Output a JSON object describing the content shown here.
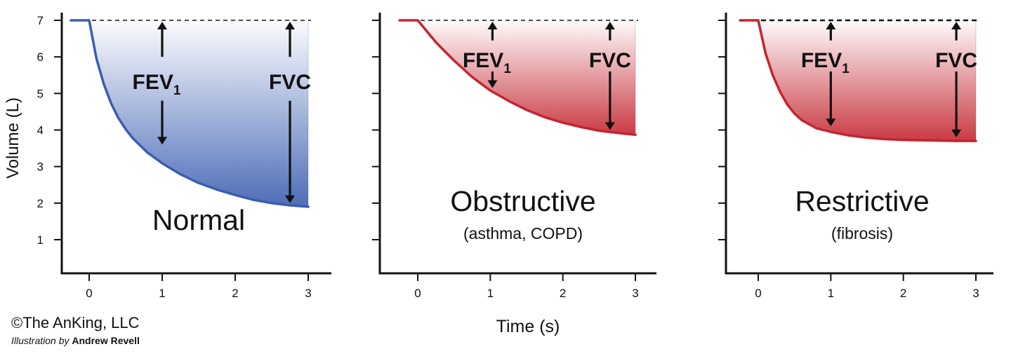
{
  "figure": {
    "ylabel": "Volume (L)",
    "xlabel": "Time (s)",
    "credit": "©The AnKing, LLC",
    "illustration_prefix": "Illustration by",
    "illustrator": "Andrew Revell"
  },
  "colors": {
    "normal": "#3a5db0",
    "disease": "#c4242f",
    "axis": "#111111"
  },
  "chart_data": [
    {
      "type": "area",
      "title": "Normal",
      "subtitle": "",
      "xlabel": "",
      "ylabel": "Volume (L)",
      "xlim": [
        -0.3,
        3.3
      ],
      "ylim": [
        0,
        7.4
      ],
      "x_ticks": [
        0,
        1,
        2,
        3
      ],
      "y_ticks": [
        1,
        2,
        3,
        4,
        5,
        6,
        7
      ],
      "show_y_tick_labels": true,
      "color": "#3a5db0",
      "baseline": 7,
      "series": [
        {
          "x": [
            -0.25,
            0,
            0.1,
            0.2,
            0.3,
            0.4,
            0.5,
            0.6,
            0.8,
            1.0,
            1.25,
            1.5,
            1.75,
            2.0,
            2.25,
            2.5,
            2.75,
            3.0
          ],
          "y": [
            7,
            7,
            5.95,
            5.26,
            4.73,
            4.33,
            4.02,
            3.77,
            3.38,
            3.09,
            2.79,
            2.55,
            2.37,
            2.22,
            2.09,
            2.0,
            1.94,
            1.9
          ]
        }
      ],
      "annotations": [
        {
          "label": "FEV",
          "sub": "1",
          "x": 1.0,
          "y_label": 5.35,
          "arrow_up": [
            6.0,
            7.0
          ],
          "arrow_down": [
            4.8,
            3.6
          ]
        },
        {
          "label": "FVC",
          "sub": "",
          "x": 2.75,
          "y_label": 5.35,
          "arrow_up": [
            6.0,
            7.0
          ],
          "arrow_down": [
            4.8,
            2.0
          ]
        }
      ]
    },
    {
      "type": "area",
      "title": "Obstructive",
      "subtitle": "(asthma, COPD)",
      "xlabel": "Time (s)",
      "ylabel": "",
      "xlim": [
        -0.3,
        3.3
      ],
      "ylim": [
        0,
        7.4
      ],
      "x_ticks": [
        0,
        1,
        2,
        3
      ],
      "y_ticks": [
        1,
        2,
        3,
        4,
        5,
        6,
        7
      ],
      "show_y_tick_labels": false,
      "color": "#c4242f",
      "baseline": 7,
      "series": [
        {
          "x": [
            -0.25,
            0,
            0.25,
            0.5,
            0.75,
            1.0,
            1.25,
            1.5,
            1.75,
            2.0,
            2.25,
            2.5,
            2.75,
            3.0
          ],
          "y": [
            7,
            7,
            6.4,
            5.9,
            5.45,
            5.08,
            4.8,
            4.55,
            4.35,
            4.2,
            4.08,
            3.98,
            3.92,
            3.87
          ]
        }
      ],
      "annotations": [
        {
          "label": "FEV",
          "sub": "1",
          "x": 1.03,
          "y_label": 5.95,
          "arrow_up": [
            6.45,
            7.0
          ],
          "arrow_down": [
            5.6,
            5.15
          ]
        },
        {
          "label": "FVC",
          "sub": "",
          "x": 2.65,
          "y_label": 5.95,
          "arrow_up": [
            6.45,
            7.0
          ],
          "arrow_down": [
            5.6,
            4.0
          ]
        }
      ]
    },
    {
      "type": "area",
      "title": "Restrictive",
      "subtitle": "(fibrosis)",
      "xlabel": "",
      "ylabel": "",
      "xlim": [
        -0.3,
        3.3
      ],
      "ylim": [
        0,
        7.4
      ],
      "x_ticks": [
        0,
        1,
        2,
        3
      ],
      "y_ticks": [
        1,
        2,
        3,
        4,
        5,
        6,
        7
      ],
      "show_y_tick_labels": false,
      "color": "#c4242f",
      "baseline": 7,
      "series": [
        {
          "x": [
            -0.25,
            0,
            0.1,
            0.2,
            0.3,
            0.4,
            0.5,
            0.6,
            0.8,
            1.0,
            1.25,
            1.5,
            1.75,
            2.0,
            2.25,
            2.5,
            2.75,
            3.0
          ],
          "y": [
            7,
            7,
            6.1,
            5.5,
            5.05,
            4.7,
            4.45,
            4.27,
            4.05,
            3.95,
            3.85,
            3.79,
            3.75,
            3.73,
            3.72,
            3.71,
            3.7,
            3.7
          ]
        }
      ],
      "annotations": [
        {
          "label": "FEV",
          "sub": "1",
          "x": 1.0,
          "y_label": 5.95,
          "arrow_up": [
            6.45,
            7.0
          ],
          "arrow_down": [
            5.6,
            4.1
          ]
        },
        {
          "label": "FVC",
          "sub": "",
          "x": 2.73,
          "y_label": 5.95,
          "arrow_up": [
            6.45,
            7.0
          ],
          "arrow_down": [
            5.6,
            3.8
          ]
        }
      ]
    }
  ]
}
